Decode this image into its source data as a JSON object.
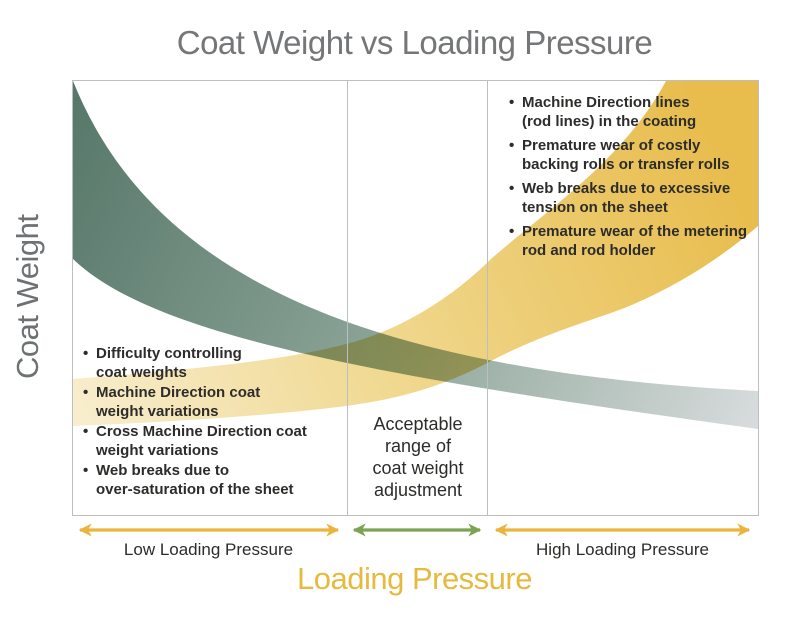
{
  "title": "Coat Weight vs Loading Pressure",
  "y_axis_label": "Coat Weight",
  "x_axis_label": "Loading Pressure",
  "zones": {
    "low": {
      "label": "Low Loading Pressure",
      "bullets": [
        "Difficulty controlling\ncoat weights",
        "Machine Direction coat\nweight variations",
        "Cross Machine Direction coat\nweight variations",
        "Web breaks due to\nover-saturation of the sheet"
      ]
    },
    "mid": {
      "label": "Acceptable\nrange of\ncoat weight\nadjustment"
    },
    "high": {
      "label": "High Loading Pressure",
      "bullets": [
        "Machine Direction lines\n(rod lines) in the coating",
        "Premature wear of costly\nbacking rolls or transfer rolls",
        "Web breaks due to excessive\ntension on the sheet",
        "Premature wear of the metering\nrod and rod holder"
      ]
    }
  },
  "colors": {
    "title_gray": "#747678",
    "axis_label_gray": "#6e7173",
    "gold": "#e6ba3f",
    "gold_arrow": "#ecb43c",
    "arrow_green": "#7aa352",
    "gold_band_start": "#f8eecf",
    "gold_band_end": "#e8bd4e",
    "green_band_start": "#567769",
    "green_band_end": "#d7dbdc",
    "overlap_green": "#8aa854",
    "text_dark": "#2d2c2a",
    "border_gray": "#bcbfc0"
  },
  "chart_data": {
    "type": "area",
    "title": "Coat Weight vs Loading Pressure",
    "xlabel": "Loading Pressure",
    "ylabel": "Coat Weight",
    "axes": "qualitative (no numeric ticks); x and y normalized 0-1",
    "grid": false,
    "legend": false,
    "zone_boundaries_x": [
      0.4,
      0.61
    ],
    "zones": [
      "Low Loading Pressure",
      "Acceptable range of coat weight adjustment",
      "High Loading Pressure"
    ],
    "series": [
      {
        "name": "Coat weight band (decreases as loading pressure rises)",
        "style": "gradient band, dark green to light gray",
        "x": [
          0.0,
          0.2,
          0.4,
          0.6,
          0.8,
          1.0
        ],
        "y_upper": [
          1.0,
          0.62,
          0.45,
          0.37,
          0.31,
          0.28
        ],
        "y_lower": [
          0.59,
          0.45,
          0.38,
          0.31,
          0.24,
          0.2
        ]
      },
      {
        "name": "Loading-pressure problems band (increases as loading pressure rises)",
        "style": "gradient band, pale cream to gold",
        "x": [
          0.0,
          0.2,
          0.4,
          0.6,
          0.8,
          0.87,
          1.0
        ],
        "y_upper": [
          0.31,
          0.33,
          0.39,
          0.59,
          0.88,
          1.0,
          1.0
        ],
        "y_lower": [
          0.21,
          0.23,
          0.25,
          0.35,
          0.52,
          0.58,
          0.67
        ]
      }
    ],
    "annotations": [
      {
        "zone": "low",
        "x": 0.03,
        "y": 0.35,
        "text": "Difficulty controlling coat weights; Machine Direction coat weight variations; Cross Machine Direction coat weight variations; Web breaks due to over-saturation of the sheet"
      },
      {
        "zone": "mid",
        "x": 0.5,
        "y": 0.18,
        "text": "Acceptable range of coat weight adjustment"
      },
      {
        "zone": "high",
        "x": 0.65,
        "y": 0.95,
        "text": "Machine Direction lines (rod lines) in the coating; Premature wear of costly backing rolls or transfer rolls; Web breaks due to excessive tension on the sheet; Premature wear of the metering rod and rod holder"
      },
      {
        "type": "overlap",
        "x": 0.5,
        "y": 0.4,
        "meaning": "band intersection rendered green = acceptable operating window"
      }
    ]
  }
}
